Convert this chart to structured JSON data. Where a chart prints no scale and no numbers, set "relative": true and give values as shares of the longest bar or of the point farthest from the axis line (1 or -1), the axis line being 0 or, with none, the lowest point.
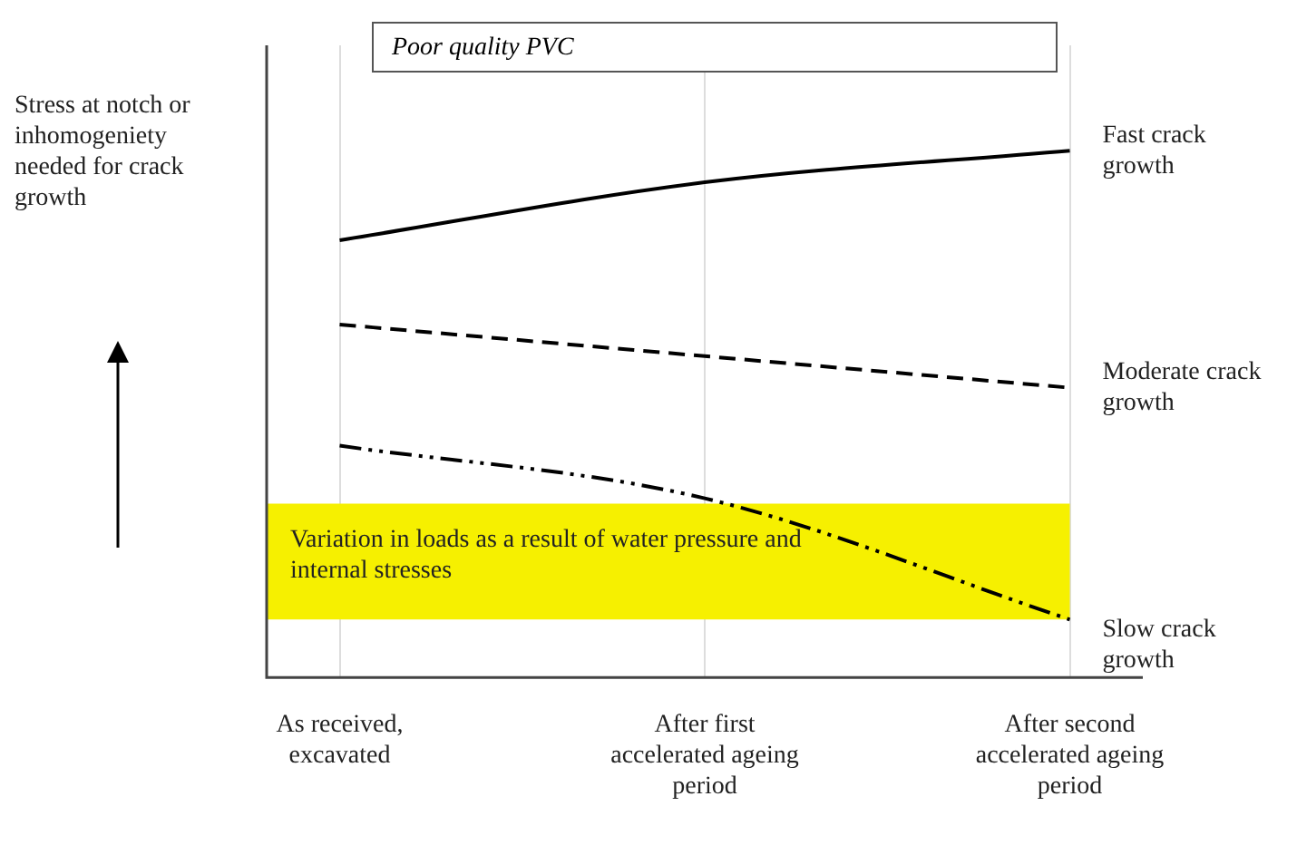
{
  "chart_data": {
    "type": "line",
    "relative": true,
    "ylabel": "Stress at notch or inhomogeniety needed for crack growth",
    "categories": [
      "As received, excavated",
      "After first accelerated ageing period",
      "After second accelerated ageing period"
    ],
    "series": [
      {
        "name": "Fast crack growth",
        "color": "#000000",
        "line_style": "solid",
        "values": [
          0.83,
          0.94,
          1
        ]
      },
      {
        "name": "Moderate crack growth",
        "color": "#000000",
        "line_style": "dashed",
        "values": [
          0.67,
          0.61,
          0.55
        ]
      },
      {
        "name": "Slow crack growth",
        "color": "#000000",
        "line_style": "dashdot",
        "values": [
          0.44,
          0.34,
          0.11
        ]
      }
    ],
    "bands": [
      {
        "axis": "y",
        "from": 0.11,
        "to": 0.33,
        "label": "Variation in loads as a result of water pressure and internal stresses",
        "color": "#f6f000"
      }
    ],
    "annotations": [
      "Poor quality PVC"
    ],
    "grid": "x",
    "legend": false,
    "marker": "none"
  }
}
